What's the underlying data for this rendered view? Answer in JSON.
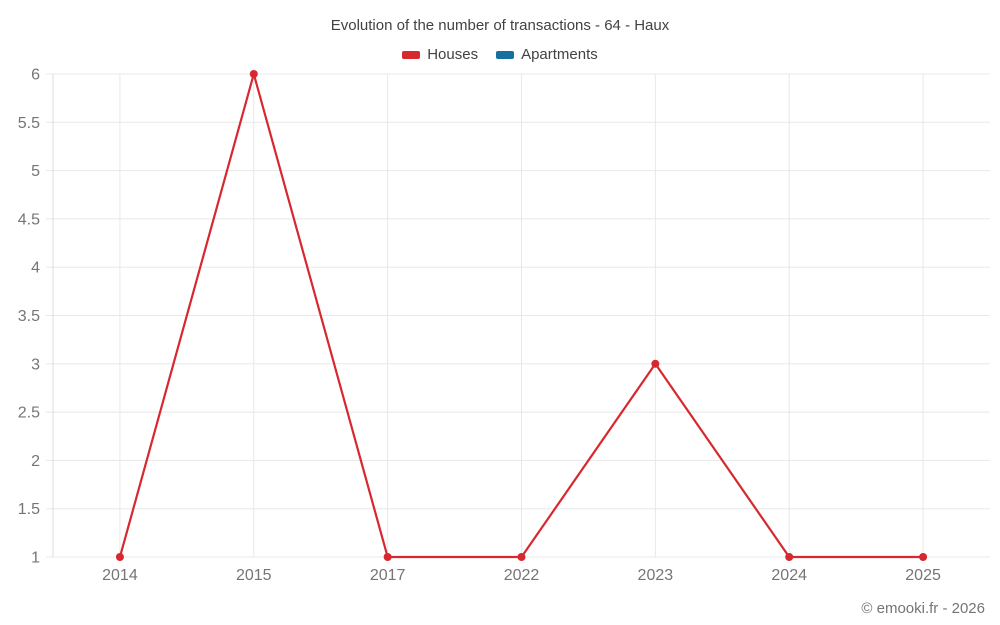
{
  "title": "Evolution of the number of transactions - 64 - Haux",
  "legend": [
    {
      "label": "Houses",
      "color": "#d7282f"
    },
    {
      "label": "Apartments",
      "color": "#1670a0"
    }
  ],
  "footer": {
    "copyright": "© emooki.fr - 2026"
  },
  "colors": {
    "houses_line": "#d7282f",
    "apartments_line": "#1670a0",
    "grid": "#e8e8e8",
    "axis": "#dddddd",
    "tick_text": "#757575",
    "title_text": "#424242"
  },
  "chart_data": {
    "type": "line",
    "title": "Evolution of the number of transactions - 64 - Haux",
    "categories": [
      "2014",
      "2015",
      "2017",
      "2022",
      "2023",
      "2024",
      "2025"
    ],
    "series": [
      {
        "name": "Houses",
        "color": "#d7282f",
        "values": [
          1,
          6,
          1,
          1,
          3,
          1,
          1
        ]
      },
      {
        "name": "Apartments",
        "color": "#1670a0",
        "values": []
      }
    ],
    "xlabel": "",
    "ylabel": "",
    "ylim": [
      1,
      6
    ],
    "ytick_step": 0.5,
    "yticks": [
      1,
      1.5,
      2,
      2.5,
      3,
      3.5,
      4,
      4.5,
      5,
      5.5,
      6
    ],
    "grid": true,
    "legend_position": "top",
    "marker": "circle"
  }
}
